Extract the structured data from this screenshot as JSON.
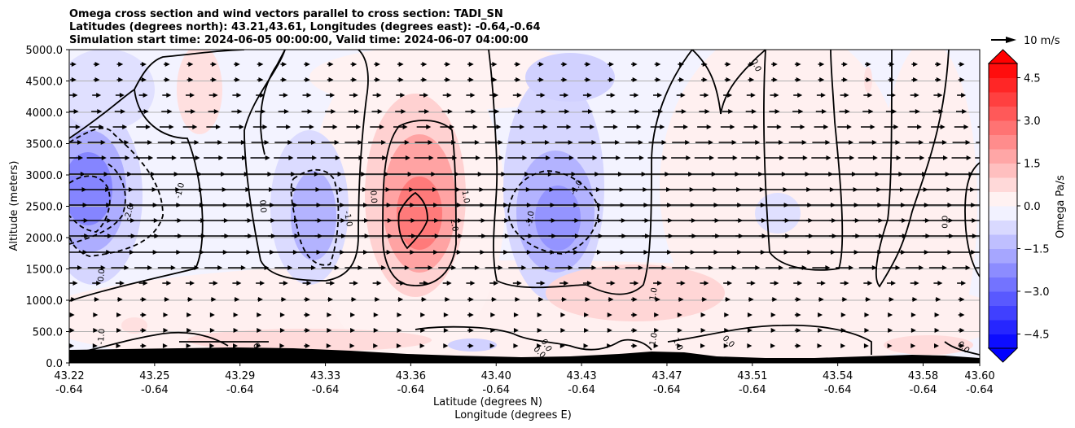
{
  "chart_data": {
    "type": "cross-section",
    "title_lines": [
      "Omega cross section and wind vectors parallel to cross section: TADI_SN",
      "Latitudes (degrees north): 43.21,43.61, Longitudes (degrees east): -0.64,-0.64",
      "Simulation start time: 2024-06-05 00:00:00, Valid time: 2024-06-07 04:00:00"
    ],
    "ylabel": "Altitude (meters)",
    "xlabel_lines": [
      "Latitude (degrees N)",
      "Longitude (degrees E)"
    ],
    "ylim": [
      0,
      5000
    ],
    "y_ticks": [
      0,
      500,
      1000,
      1500,
      2000,
      2500,
      3000,
      3500,
      4000,
      4500,
      5000
    ],
    "y_tick_labels": [
      "0.0",
      "500.0",
      "1000.0",
      "1500.0",
      "2000.0",
      "2500.0",
      "3000.0",
      "3500.0",
      "4000.0",
      "4500.0",
      "5000.0"
    ],
    "x_ticks": [
      {
        "lat": "43.22",
        "lon": "-0.64"
      },
      {
        "lat": "43.25",
        "lon": "-0.64"
      },
      {
        "lat": "43.29",
        "lon": "-0.64"
      },
      {
        "lat": "43.33",
        "lon": "-0.64"
      },
      {
        "lat": "43.36",
        "lon": "-0.64"
      },
      {
        "lat": "43.40",
        "lon": "-0.64"
      },
      {
        "lat": "43.43",
        "lon": "-0.64"
      },
      {
        "lat": "43.47",
        "lon": "-0.64"
      },
      {
        "lat": "43.51",
        "lon": "-0.64"
      },
      {
        "lat": "43.54",
        "lon": "-0.64"
      },
      {
        "lat": "43.58",
        "lon": "-0.64"
      },
      {
        "lat": "43.60",
        "lon": "-0.64"
      }
    ],
    "grid": "horizontal",
    "colorbar": {
      "label": "Omega Pa/s",
      "range": [
        -5,
        5
      ],
      "step": 0.5,
      "ticks": [
        4.5,
        3.0,
        1.5,
        0.0,
        -1.5,
        -3.0,
        -4.5
      ],
      "tick_labels": [
        "4.5",
        "3.0",
        "1.5",
        "0.0",
        "−1.5",
        "−3.0",
        "−4.5"
      ],
      "extend": "both",
      "cmap": "bwr",
      "colors": {
        "negative": "#0000ff",
        "neutral": "#ffffff",
        "positive": "#ff0000"
      }
    },
    "quiver_key": {
      "label": "10 m/s",
      "speed": 10
    },
    "contour_labels": [
      {
        "text": "-2.0",
        "lat": 43.236,
        "alt": 2400,
        "rot": -75
      },
      {
        "text": "-1.0",
        "lat": 43.258,
        "alt": 2750,
        "rot": -75
      },
      {
        "text": "0.0",
        "lat": 43.294,
        "alt": 2500,
        "rot": 85
      },
      {
        "text": "0.0",
        "lat": 43.342,
        "alt": 2650,
        "rot": 85
      },
      {
        "text": "-1.0",
        "lat": 43.331,
        "alt": 2300,
        "rot": 80
      },
      {
        "text": "1.0",
        "lat": 43.382,
        "alt": 2650,
        "rot": 80
      },
      {
        "text": "2.0",
        "lat": 43.377,
        "alt": 2200,
        "rot": 80
      },
      {
        "text": "-1.0",
        "lat": 43.41,
        "alt": 2300,
        "rot": -80
      },
      {
        "text": "-1.0",
        "lat": 43.43,
        "alt": 2800,
        "rot": -60
      },
      {
        "text": "0.0",
        "lat": 43.508,
        "alt": 4750,
        "rot": 65
      },
      {
        "text": "0.0",
        "lat": 43.59,
        "alt": 2250,
        "rot": -90
      },
      {
        "text": "0.0",
        "lat": 43.224,
        "alt": 1400,
        "rot": -85
      },
      {
        "text": "-1.0",
        "lat": 43.224,
        "alt": 420,
        "rot": -85
      },
      {
        "text": "1.0",
        "lat": 43.4635,
        "alt": 1100,
        "rot": -80
      },
      {
        "text": "1.0",
        "lat": 43.4635,
        "alt": 380,
        "rot": -80
      },
      {
        "text": "1.0",
        "lat": 43.474,
        "alt": 300,
        "rot": 65
      },
      {
        "text": "0.0",
        "lat": 43.496,
        "alt": 340,
        "rot": 45
      },
      {
        "text": "0.0",
        "lat": 43.598,
        "alt": 250,
        "rot": 45
      },
      {
        "text": "0.0",
        "lat": 43.417,
        "alt": 280,
        "rot": 60
      },
      {
        "text": "0.0",
        "lat": 43.414,
        "alt": 170,
        "rot": 45
      },
      {
        "text": "0.0",
        "lat": 43.292,
        "alt": 220,
        "rot": 60
      }
    ]
  }
}
